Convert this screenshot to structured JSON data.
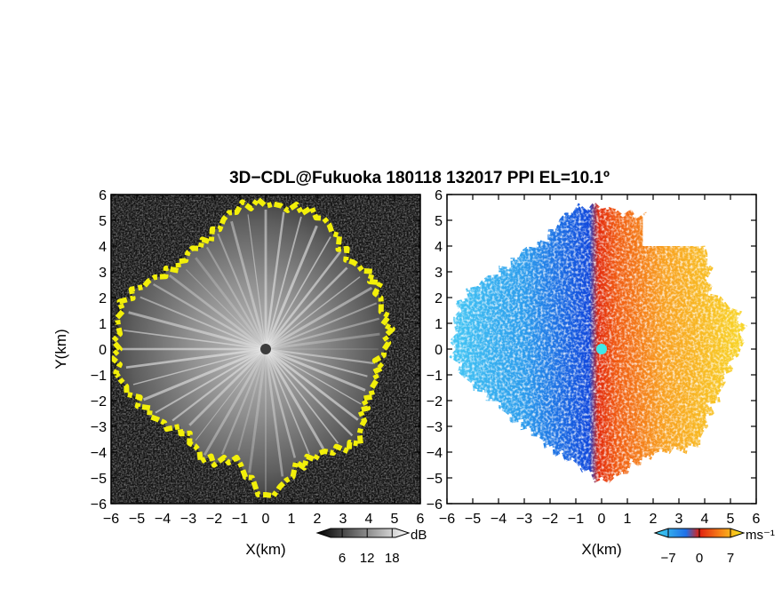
{
  "chart_data": [
    {
      "type": "heatmap",
      "title": "3D−CDL@Fukuoka 180118 132017 PPI EL=10.1º",
      "panel": "reflectivity",
      "xlabel": "X(km)",
      "ylabel": "Y(km)",
      "xlim": [
        -6,
        6
      ],
      "ylim": [
        -6,
        6
      ],
      "xticks": [
        "−6",
        "−5",
        "−4",
        "−3",
        "−2",
        "−1",
        "0",
        "1",
        "2",
        "3",
        "4",
        "5",
        "6"
      ],
      "yticks": [
        "6",
        "5",
        "4",
        "3",
        "2",
        "1",
        "0",
        "−1",
        "−2",
        "−3",
        "−4",
        "−5",
        "−6"
      ],
      "colorbar": {
        "unit": "dB",
        "ticks": [
          "6",
          "12",
          "18"
        ],
        "range": [
          0,
          22
        ]
      },
      "colors": {
        "background": "#111111",
        "mid": "#8a8a8a",
        "edge": "#f2f20a",
        "center": "#444444"
      },
      "echo_radius_km": [
        [
          0,
          4.6
        ],
        [
          15,
          4.8
        ],
        [
          30,
          5.0
        ],
        [
          45,
          4.7
        ],
        [
          60,
          5.3
        ],
        [
          75,
          5.6
        ],
        [
          90,
          5.7
        ],
        [
          105,
          5.4
        ],
        [
          120,
          4.8
        ],
        [
          135,
          4.6
        ],
        [
          150,
          5.3
        ],
        [
          165,
          5.8
        ],
        [
          180,
          5.9
        ],
        [
          195,
          5.6
        ],
        [
          210,
          5.2
        ],
        [
          225,
          4.4
        ],
        [
          240,
          5.0
        ],
        [
          255,
          4.3
        ],
        [
          270,
          5.9
        ],
        [
          285,
          4.6
        ],
        [
          300,
          4.7
        ],
        [
          315,
          5.0
        ],
        [
          330,
          4.5
        ],
        [
          345,
          4.3
        ]
      ]
    },
    {
      "type": "heatmap",
      "panel": "doppler-velocity",
      "xlabel": "X(km)",
      "ylabel": "",
      "xlim": [
        -6,
        6
      ],
      "ylim": [
        -6,
        6
      ],
      "xticks": [
        "−6",
        "−5",
        "−4",
        "−3",
        "−2",
        "−1",
        "0",
        "1",
        "2",
        "3",
        "4",
        "5",
        "6"
      ],
      "yticks": [
        "6",
        "5",
        "4",
        "3",
        "2",
        "1",
        "0",
        "−1",
        "−2",
        "−3",
        "−4",
        "−5",
        "−6"
      ],
      "colorbar": {
        "unit": "ms⁻¹",
        "ticks": [
          "−7",
          "0",
          "7"
        ],
        "range": [
          -10,
          10
        ]
      },
      "colors": {
        "negative_far": "#38c0f0",
        "negative_near": "#1050e0",
        "positive_near": "#e83010",
        "positive_mid": "#f88018",
        "positive_far": "#f8e020",
        "center": "#40e8e8"
      },
      "echo_radius_km": [
        [
          0,
          5.4
        ],
        [
          15,
          5.5
        ],
        [
          30,
          4.8
        ],
        [
          45,
          5.6
        ],
        [
          60,
          5.2
        ],
        [
          75,
          5.4
        ],
        [
          90,
          5.6
        ],
        [
          105,
          5.4
        ],
        [
          120,
          4.8
        ],
        [
          135,
          4.8
        ],
        [
          150,
          5.4
        ],
        [
          165,
          5.8
        ],
        [
          180,
          5.9
        ],
        [
          195,
          5.2
        ],
        [
          210,
          4.6
        ],
        [
          225,
          4.2
        ],
        [
          240,
          4.4
        ],
        [
          255,
          4.4
        ],
        [
          270,
          5.3
        ],
        [
          285,
          4.6
        ],
        [
          300,
          4.7
        ],
        [
          315,
          5.2
        ],
        [
          330,
          5.0
        ],
        [
          345,
          4.8
        ]
      ]
    }
  ]
}
